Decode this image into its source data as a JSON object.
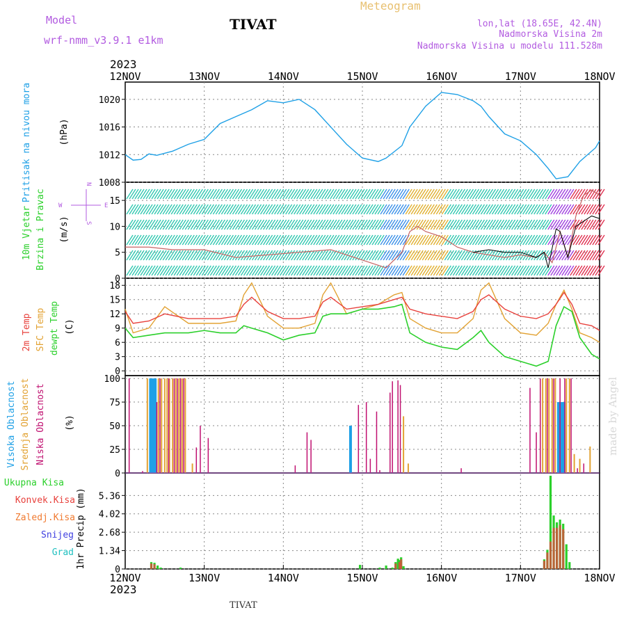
{
  "header": {
    "title": "TIVAT",
    "meteogram": "Meteogram",
    "model_label": "Model",
    "model_name": "wrf-nmm_v3.9.1  e1km",
    "lonlat": "lon,lat (18.65E, 42.4N)",
    "elevation": "Nadmorska Visina 2m",
    "model_elevation": "Nadmorska Visina u modelu 111.528m",
    "year_top": "2023",
    "year_bottom": "2023",
    "footer_title": "TIVAT",
    "watermark": "made by Angel",
    "wind_dirs": {
      "north": "N",
      "south": "S",
      "east": "E",
      "west": "W"
    }
  },
  "colors": {
    "pressure": "#1ea0e6",
    "temp2m": "#e8413c",
    "sfc": "#e2a233",
    "dewpt": "#2bd02b",
    "high_cloud": "#1ea0e6",
    "mid_cloud": "#e2a233",
    "low_cloud": "#c01070",
    "total_precip": "#2bd02b",
    "conv_precip": "#e8413c",
    "grid": "#888888"
  },
  "chart_data": [
    {
      "type": "line",
      "panel": "pressure",
      "ylabel_left": "Pritisak na nivou mora",
      "ylabel_unit": "(hPa)",
      "x_ticks": [
        "12NOV",
        "13NOV",
        "14NOV",
        "15NOV",
        "16NOV",
        "17NOV",
        "18NOV"
      ],
      "yticks": [
        1008,
        1012,
        1016,
        1020
      ],
      "ylim": [
        1008,
        1022.5
      ],
      "series": [
        {
          "x": [
            0,
            0.1,
            0.2,
            0.3,
            0.4,
            0.6,
            0.8,
            1.0,
            1.2,
            1.4,
            1.6,
            1.8,
            2.0,
            2.2,
            2.4,
            2.6,
            2.8,
            3.0,
            3.2,
            3.3,
            3.5,
            3.6,
            3.8,
            4.0,
            4.2,
            4.4,
            4.5,
            4.6,
            4.8,
            5.0,
            5.2,
            5.35,
            5.45,
            5.5,
            5.6,
            5.75,
            5.85,
            5.95,
            6.0
          ],
          "values": [
            1012.0,
            1011.2,
            1011.3,
            1012.1,
            1011.9,
            1012.5,
            1013.5,
            1014.2,
            1016.5,
            1017.5,
            1018.5,
            1019.8,
            1019.5,
            1020.0,
            1018.5,
            1016.0,
            1013.5,
            1011.5,
            1011.0,
            1011.5,
            1013.3,
            1016.0,
            1019.0,
            1021.0,
            1020.7,
            1019.8,
            1019.0,
            1017.5,
            1015.0,
            1014.0,
            1012.0,
            1010.0,
            1008.5,
            1008.6,
            1008.8,
            1011.0,
            1012.0,
            1013.0,
            1014.0
          ]
        }
      ]
    },
    {
      "type": "line",
      "panel": "wind",
      "ylabel_left1": "10m Vjetar",
      "ylabel_left2": "Brzina i Pravac",
      "ylabel_unit": "(m/s)",
      "yticks": [
        0,
        5,
        10,
        15
      ],
      "ylim": [
        0,
        18.5
      ],
      "series": [
        {
          "name": "speed",
          "x": [
            0,
            0.3,
            0.6,
            1.0,
            1.4,
            1.8,
            2.2,
            2.6,
            3.0,
            3.3,
            3.5,
            3.6,
            3.7,
            3.8,
            4.0,
            4.2,
            4.4,
            4.6,
            4.8,
            5.0,
            5.2,
            5.3,
            5.4,
            5.5,
            5.6,
            5.7,
            5.75,
            5.8,
            5.9,
            6.0
          ],
          "values": [
            6,
            6,
            5.5,
            5.5,
            4,
            4.5,
            5,
            5.5,
            3.5,
            2,
            5,
            9,
            10,
            9,
            8,
            6,
            5,
            4.5,
            4,
            4.5,
            4,
            5,
            3,
            9,
            4,
            12,
            14,
            16,
            17,
            16
          ]
        },
        {
          "name": "gust",
          "x": [
            4.4,
            4.6,
            4.8,
            5.0,
            5.2,
            5.3,
            5.35,
            5.45,
            5.5,
            5.6,
            5.7,
            5.8,
            5.9,
            6.0
          ],
          "values": [
            5,
            5.5,
            5,
            5,
            4,
            5,
            2,
            9.5,
            9,
            4,
            10,
            11,
            12,
            11.5
          ]
        }
      ]
    },
    {
      "type": "line",
      "panel": "temperature",
      "ylabel_left1": "2m Temp",
      "ylabel_left2": "SFC Temp",
      "ylabel_left3": "dewpt Temp",
      "ylabel_unit": "(C)",
      "yticks": [
        0,
        3,
        6,
        9,
        12,
        15,
        18
      ],
      "ylim": [
        -1,
        19.5
      ],
      "series": [
        {
          "name": "2m Temp",
          "x": [
            0,
            0.1,
            0.3,
            0.5,
            0.8,
            1.0,
            1.2,
            1.4,
            1.5,
            1.6,
            1.8,
            2.0,
            2.2,
            2.4,
            2.5,
            2.6,
            2.8,
            3.0,
            3.2,
            3.4,
            3.5,
            3.6,
            3.8,
            4.0,
            4.2,
            4.4,
            4.5,
            4.6,
            4.8,
            5.0,
            5.2,
            5.35,
            5.45,
            5.55,
            5.65,
            5.75,
            5.9,
            6.0
          ],
          "values": [
            12.5,
            10,
            10.5,
            12,
            11,
            11,
            11,
            11.5,
            14,
            15.5,
            12.5,
            11,
            11,
            11.5,
            14.5,
            15.5,
            13,
            13.5,
            14,
            15,
            15.5,
            13,
            12,
            11.5,
            11,
            12.5,
            15,
            16,
            13,
            11.5,
            11,
            12,
            14,
            16.5,
            14,
            10,
            9.5,
            8.5
          ]
        },
        {
          "name": "SFC Temp",
          "x": [
            0,
            0.1,
            0.3,
            0.5,
            0.8,
            1.0,
            1.2,
            1.4,
            1.5,
            1.6,
            1.8,
            2.0,
            2.2,
            2.4,
            2.5,
            2.6,
            2.8,
            3.0,
            3.2,
            3.4,
            3.5,
            3.6,
            3.8,
            4.0,
            4.2,
            4.4,
            4.5,
            4.6,
            4.8,
            5.0,
            5.2,
            5.35,
            5.45,
            5.55,
            5.65,
            5.75,
            5.9,
            6.0
          ],
          "values": [
            13,
            8,
            9,
            13.5,
            10,
            10,
            10,
            10.5,
            16,
            18.5,
            11.5,
            9,
            9,
            10,
            16,
            18.5,
            12,
            13,
            14,
            16,
            16.5,
            11,
            9,
            8,
            8,
            11,
            17,
            18.5,
            11,
            8,
            7.5,
            10,
            14,
            17,
            13,
            8,
            7,
            6
          ]
        },
        {
          "name": "dewpt Temp",
          "x": [
            0,
            0.1,
            0.3,
            0.5,
            0.8,
            1.0,
            1.2,
            1.4,
            1.5,
            1.6,
            1.8,
            2.0,
            2.2,
            2.4,
            2.5,
            2.6,
            2.8,
            3.0,
            3.2,
            3.4,
            3.5,
            3.6,
            3.8,
            4.0,
            4.2,
            4.4,
            4.5,
            4.6,
            4.8,
            5.0,
            5.2,
            5.35,
            5.45,
            5.55,
            5.65,
            5.75,
            5.9,
            6.0
          ],
          "values": [
            9,
            7,
            7.5,
            8,
            8,
            8.5,
            8,
            8,
            9.5,
            9,
            8,
            6.5,
            7.5,
            8,
            11.5,
            12,
            12,
            13,
            13,
            13.5,
            14,
            8,
            6,
            5,
            4.5,
            7,
            8.5,
            6,
            3,
            2,
            1,
            2,
            9.5,
            13.5,
            12.5,
            7,
            3.5,
            2.5
          ]
        }
      ]
    },
    {
      "type": "bar",
      "panel": "cloud",
      "ylabel_left1": "Visoka Oblacnost",
      "ylabel_left2": "Srednja Oblacnost",
      "ylabel_left3": "Niska Oblacnost",
      "ylabel_unit": "(%)",
      "yticks": [
        0,
        25,
        50,
        75,
        100
      ],
      "ylim": [
        0,
        103
      ],
      "series": [
        {
          "name": "Visoka",
          "x": [
            0.32,
            0.35,
            0.38,
            2.85,
            5.48,
            5.52,
            5.55
          ],
          "values": [
            100,
            100,
            100,
            50,
            75,
            75,
            75
          ]
        },
        {
          "name": "Srednja",
          "x": [
            0.28,
            0.42,
            0.46,
            0.5,
            0.53,
            0.56,
            0.6,
            0.64,
            0.68,
            0.72,
            0.76,
            0.85,
            3.52,
            3.58,
            5.28,
            5.32,
            5.36,
            5.4,
            5.44,
            5.58,
            5.62,
            5.68,
            5.75,
            5.88
          ],
          "values": [
            100,
            100,
            100,
            100,
            100,
            100,
            100,
            100,
            100,
            100,
            100,
            10,
            60,
            10,
            100,
            100,
            100,
            100,
            100,
            100,
            100,
            20,
            15,
            28
          ]
        },
        {
          "name": "Niska",
          "x": [
            0.05,
            0.22,
            0.4,
            0.44,
            0.55,
            0.62,
            0.66,
            0.7,
            0.74,
            0.9,
            0.95,
            1.05,
            2.15,
            2.3,
            2.35,
            2.95,
            3.05,
            3.1,
            3.18,
            3.22,
            3.35,
            3.38,
            3.45,
            3.48,
            4.25,
            5.12,
            5.2,
            5.25,
            5.34,
            5.42,
            5.5,
            5.56,
            5.64,
            5.72,
            5.8
          ],
          "values": [
            100,
            2,
            75,
            100,
            100,
            100,
            100,
            100,
            100,
            27,
            50,
            37,
            8,
            43,
            35,
            72,
            75,
            15,
            65,
            3,
            85,
            97,
            98,
            93,
            5,
            90,
            43,
            100,
            100,
            100,
            100,
            100,
            100,
            5,
            10
          ]
        }
      ]
    },
    {
      "type": "bar",
      "panel": "precip",
      "legend": [
        "Ukupna Kisa",
        "Konvek.Kisa",
        "Zaledj.Kisa",
        "Snijeg",
        "Grad"
      ],
      "ylabel_unit": "1hr Precip (mm)",
      "yticks": [
        0,
        1.34,
        2.68,
        4.02,
        5.36
      ],
      "ylim": [
        0,
        7
      ],
      "series": [
        {
          "name": "Ukupna Kisa",
          "x": [
            0.33,
            0.37,
            0.41,
            0.45,
            0.7,
            2.97,
            3.22,
            3.3,
            3.38,
            3.42,
            3.45,
            3.47,
            3.49,
            3.52,
            5.3,
            5.34,
            5.38,
            5.42,
            5.46,
            5.5,
            5.54,
            5.58,
            5.62
          ],
          "values": [
            0.5,
            0.45,
            0.25,
            0.1,
            0.1,
            0.3,
            0.1,
            0.25,
            0.1,
            0.5,
            0.75,
            0.65,
            0.85,
            0.2,
            0.7,
            1.4,
            6.8,
            3.9,
            3.4,
            3.6,
            3.3,
            1.8,
            0.5
          ]
        },
        {
          "name": "Konvek.Kisa",
          "x": [
            0.33,
            0.37,
            3.42,
            3.47,
            3.49,
            5.3,
            5.34,
            5.38,
            5.42,
            5.46,
            5.5,
            5.54
          ],
          "values": [
            0.4,
            0.35,
            0.4,
            0.5,
            0.7,
            0.6,
            1.2,
            2.0,
            3.0,
            3.0,
            3.2,
            2.9
          ]
        }
      ]
    }
  ]
}
